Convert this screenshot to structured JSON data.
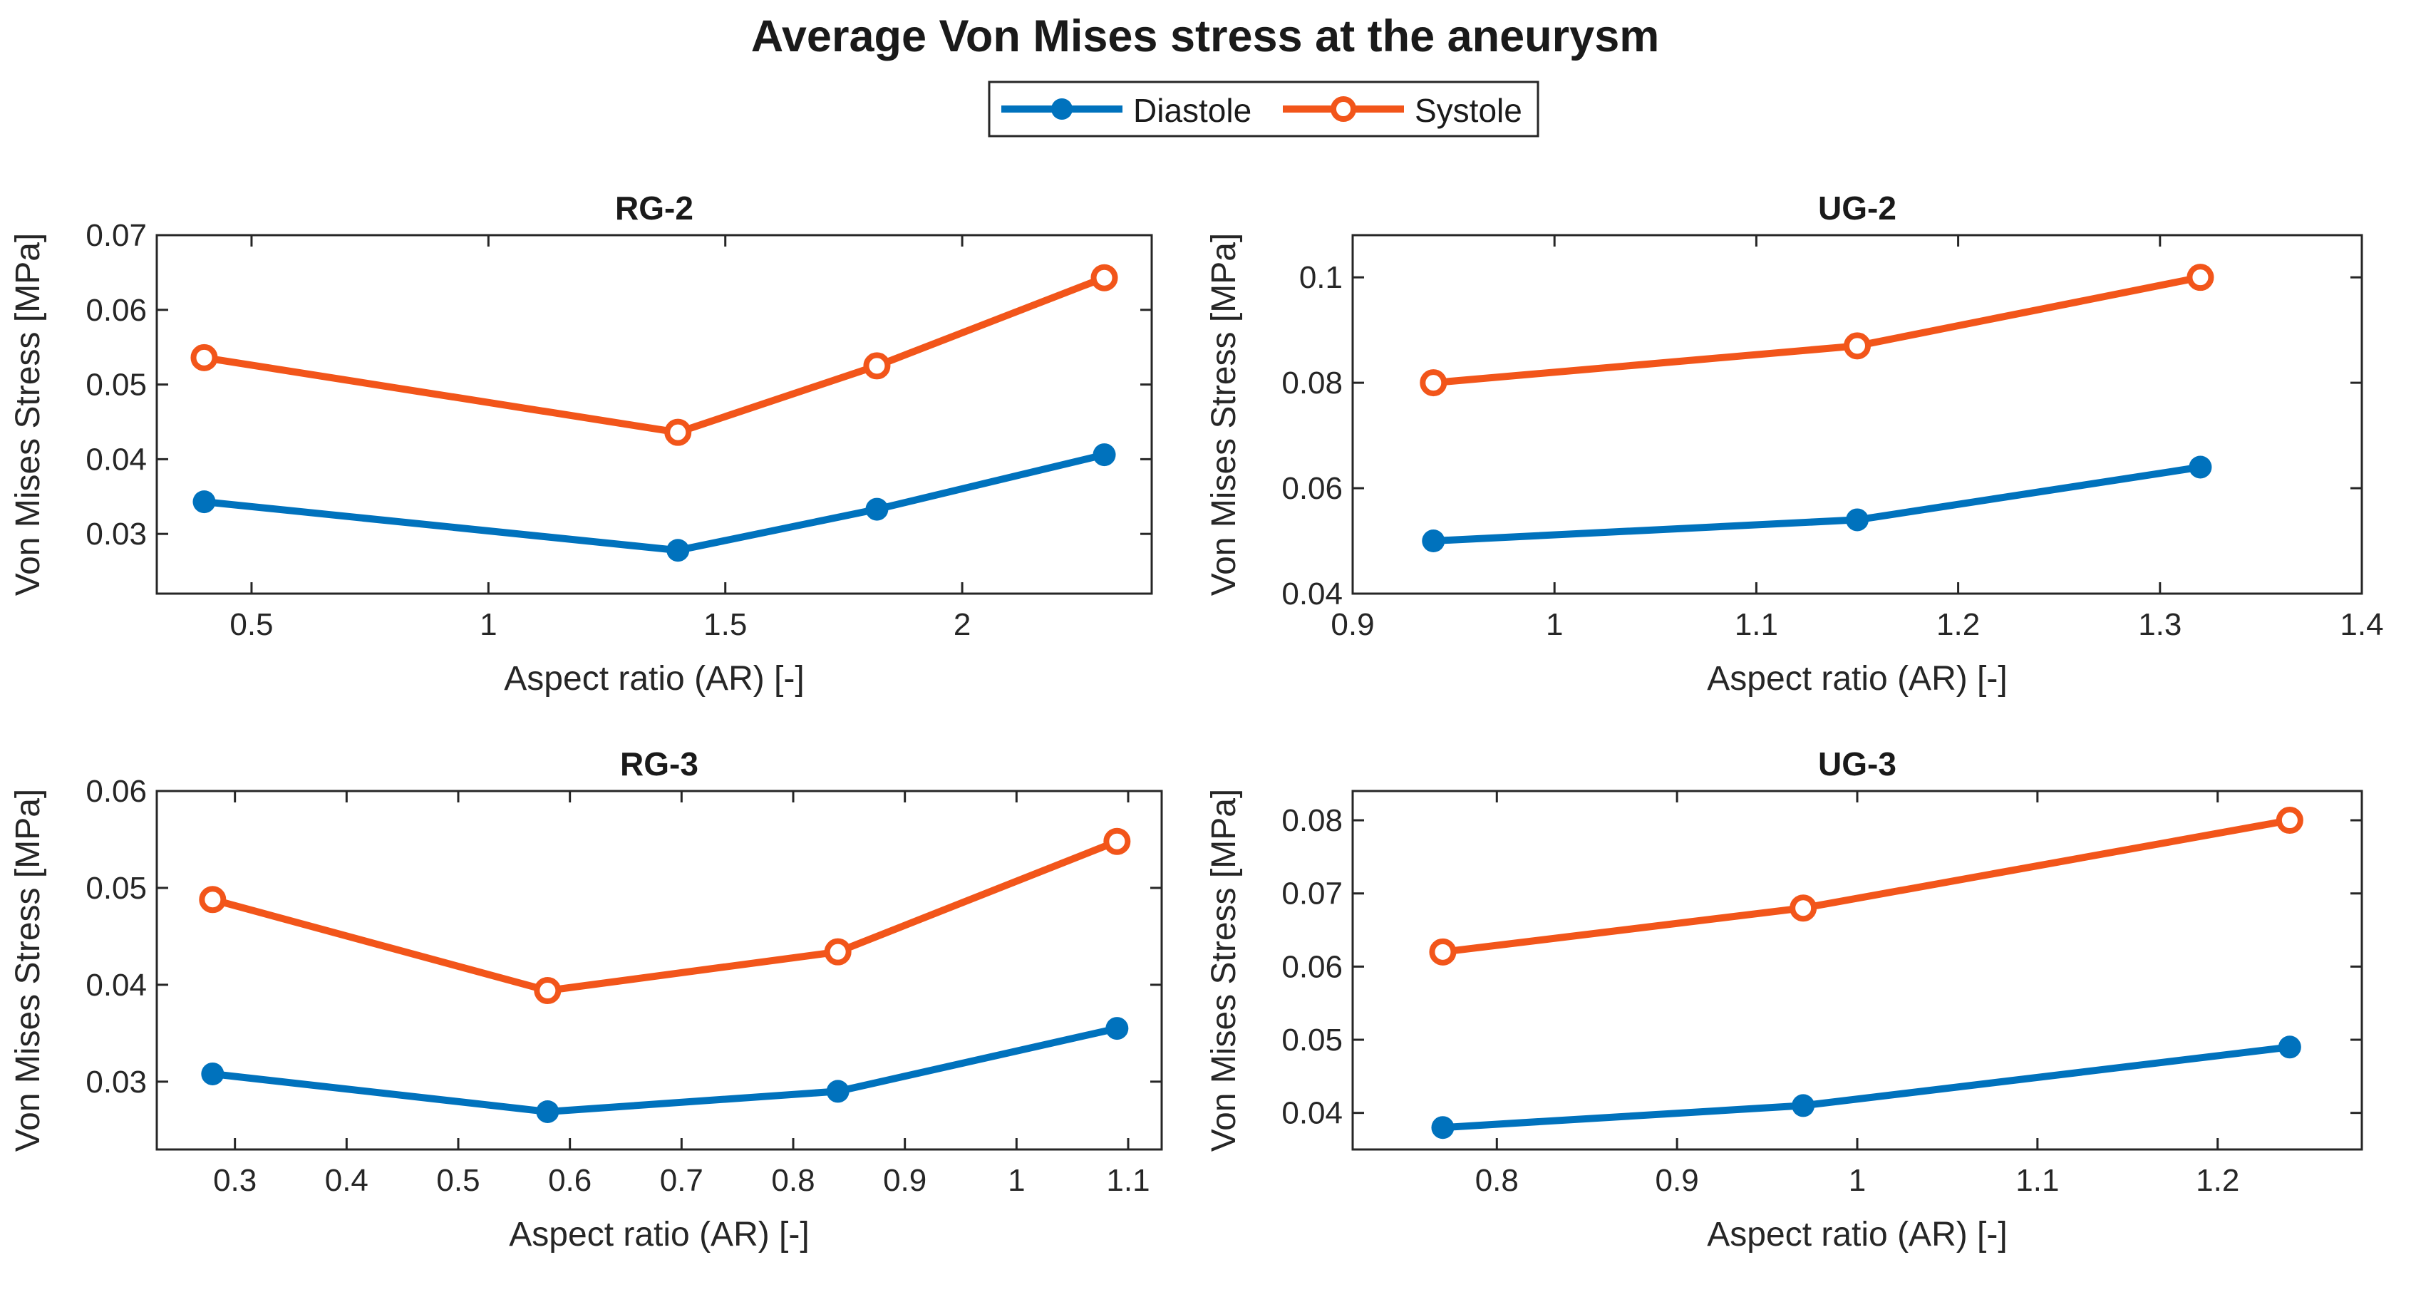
{
  "figure_title": "Average Von Mises stress at the aneurysm",
  "legend": {
    "entries": [
      {
        "label": "Diastole",
        "color": "#0072BD",
        "marker": "filled-circle"
      },
      {
        "label": "Systole",
        "color": "#F2551A",
        "marker": "open-circle"
      }
    ]
  },
  "chart_data": [
    {
      "type": "line",
      "title": "RG-2",
      "xlabel": "Aspect ratio (AR) [-]",
      "ylabel": "Von Mises Stress [MPa]",
      "xlim": [
        0.3,
        2.4
      ],
      "ylim": [
        0.022,
        0.07
      ],
      "xticks": [
        0.5,
        1,
        1.5,
        2
      ],
      "xtick_labels": [
        "0.5",
        "1",
        "1.5",
        "2"
      ],
      "yticks": [
        0.03,
        0.04,
        0.05,
        0.06,
        0.07
      ],
      "ytick_labels": [
        "0.03",
        "0.04",
        "0.05",
        "0.06",
        "0.07"
      ],
      "grid": false,
      "series": [
        {
          "name": "Diastole",
          "x": [
            0.4,
            1.4,
            1.82,
            2.3
          ],
          "values": [
            0.0343,
            0.0278,
            0.0333,
            0.0406
          ]
        },
        {
          "name": "Systole",
          "x": [
            0.4,
            1.4,
            1.82,
            2.3
          ],
          "values": [
            0.0536,
            0.0436,
            0.0525,
            0.0643
          ]
        }
      ]
    },
    {
      "type": "line",
      "title": "UG-2",
      "xlabel": "Aspect ratio (AR) [-]",
      "ylabel": "Von Mises Stress [MPa]",
      "xlim": [
        0.9,
        1.4
      ],
      "ylim": [
        0.04,
        0.108
      ],
      "xticks": [
        0.9,
        1,
        1.1,
        1.2,
        1.3,
        1.4
      ],
      "xtick_labels": [
        "0.9",
        "1",
        "1.1",
        "1.2",
        "1.3",
        "1.4"
      ],
      "yticks": [
        0.04,
        0.06,
        0.08,
        0.1
      ],
      "ytick_labels": [
        "0.04",
        "0.06",
        "0.08",
        "0.1"
      ],
      "grid": false,
      "series": [
        {
          "name": "Diastole",
          "x": [
            0.94,
            1.15,
            1.32
          ],
          "values": [
            0.05,
            0.054,
            0.064
          ]
        },
        {
          "name": "Systole",
          "x": [
            0.94,
            1.15,
            1.32
          ],
          "values": [
            0.08,
            0.087,
            0.1
          ]
        }
      ]
    },
    {
      "type": "line",
      "title": "RG-3",
      "xlabel": "Aspect ratio (AR) [-]",
      "ylabel": "Von Mises Stress [MPa]",
      "xlim": [
        0.23,
        1.13
      ],
      "ylim": [
        0.023,
        0.06
      ],
      "xticks": [
        0.3,
        0.4,
        0.5,
        0.6,
        0.7,
        0.8,
        0.9,
        1,
        1.1
      ],
      "xtick_labels": [
        "0.3",
        "0.4",
        "0.5",
        "0.6",
        "0.7",
        "0.8",
        "0.9",
        "1",
        "1.1"
      ],
      "yticks": [
        0.03,
        0.04,
        0.05,
        0.06
      ],
      "ytick_labels": [
        "0.03",
        "0.04",
        "0.05",
        "0.06"
      ],
      "grid": false,
      "series": [
        {
          "name": "Diastole",
          "x": [
            0.28,
            0.58,
            0.84,
            1.09
          ],
          "values": [
            0.0308,
            0.0269,
            0.029,
            0.0355
          ]
        },
        {
          "name": "Systole",
          "x": [
            0.28,
            0.58,
            0.84,
            1.09
          ],
          "values": [
            0.0488,
            0.0394,
            0.0434,
            0.0548
          ]
        }
      ]
    },
    {
      "type": "line",
      "title": "UG-3",
      "xlabel": "Aspect ratio (AR) [-]",
      "ylabel": "Von Mises Stress [MPa]",
      "xlim": [
        0.72,
        1.28
      ],
      "ylim": [
        0.035,
        0.084
      ],
      "xticks": [
        0.8,
        0.9,
        1,
        1.1,
        1.2
      ],
      "xtick_labels": [
        "0.8",
        "0.9",
        "1",
        "1.1",
        "1.2"
      ],
      "yticks": [
        0.04,
        0.05,
        0.06,
        0.07,
        0.08
      ],
      "ytick_labels": [
        "0.04",
        "0.05",
        "0.06",
        "0.07",
        "0.08"
      ],
      "grid": false,
      "series": [
        {
          "name": "Diastole",
          "x": [
            0.77,
            0.97,
            1.24
          ],
          "values": [
            0.038,
            0.041,
            0.049
          ]
        },
        {
          "name": "Systole",
          "x": [
            0.77,
            0.97,
            1.24
          ],
          "values": [
            0.062,
            0.068,
            0.08
          ]
        }
      ]
    }
  ]
}
